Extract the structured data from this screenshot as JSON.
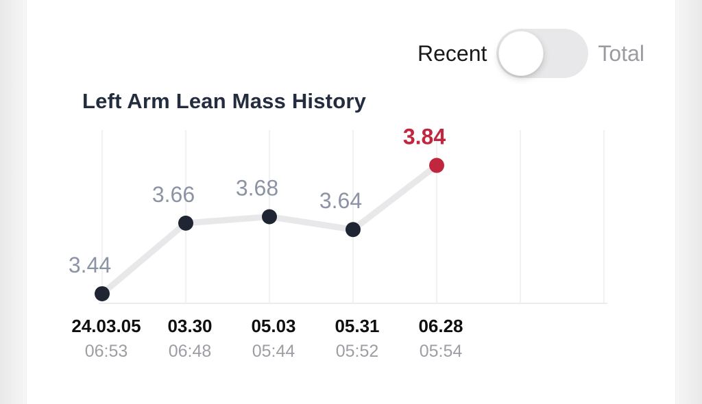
{
  "toggle": {
    "left_label": "Recent",
    "right_label": "Total",
    "selected": "Recent",
    "knob_position": "left"
  },
  "chart_data": {
    "type": "line",
    "title": "Left Arm Lean Mass History",
    "categories": [
      "24.03.05",
      "03.30",
      "05.03",
      "05.31",
      "06.28"
    ],
    "category_times": [
      "06:53",
      "06:48",
      "05:44",
      "05:52",
      "05:54"
    ],
    "values": [
      3.44,
      3.66,
      3.68,
      3.64,
      3.84
    ],
    "point_labels": [
      "3.44",
      "3.66",
      "3.68",
      "3.64",
      "3.84"
    ],
    "highlight_index": 4,
    "ylim": [
      3.41,
      3.95
    ],
    "grid": "vertical",
    "gridlines_total": 7,
    "legend": "none",
    "colors": {
      "point": "#1f2533",
      "highlight": "#c0273e",
      "line": "#e8e8ea",
      "value_label": "#8b93a4",
      "date_label": "#0f0f10",
      "time_label": "#9b9ea3",
      "gridline": "#f1f1f2",
      "axis_line": "#ececee",
      "title": "#232d3f"
    }
  }
}
